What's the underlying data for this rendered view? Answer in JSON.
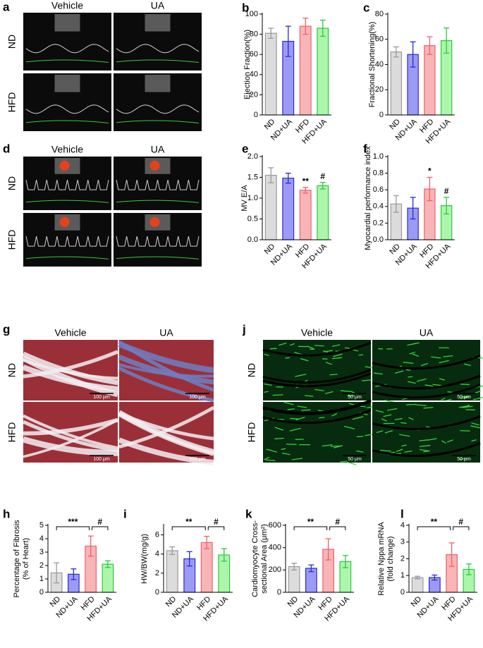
{
  "image_panels": [
    {
      "label": "a",
      "columns": [
        "Vehicle",
        "UA"
      ],
      "rows": [
        "ND",
        "HFD"
      ]
    },
    {
      "label": "d",
      "columns": [
        "Vehicle",
        "UA"
      ],
      "rows": [
        "ND",
        "HFD"
      ]
    },
    {
      "label": "g",
      "columns": [
        "Vehicle",
        "UA"
      ],
      "rows": [
        "ND",
        "HFD"
      ],
      "scale_bar": "100 μm"
    },
    {
      "label": "j",
      "columns": [
        "Vehicle",
        "UA"
      ],
      "rows": [
        "ND",
        "HFD"
      ],
      "scale_bar": "50 μm"
    }
  ],
  "palette": {
    "fill": [
      "#d6d6d6",
      "#8a8af5",
      "#f7a8a8",
      "#9df59d"
    ],
    "stroke": [
      "#9a9a9a",
      "#2b2bd6",
      "#f0606e",
      "#2ec83e"
    ]
  },
  "chart_data": [
    {
      "type": "bar",
      "panel_label": "b",
      "y_label": "Ejection Fraction(%)",
      "categories": [
        "ND",
        "ND+UA",
        "HFD",
        "HFD+UA"
      ],
      "values": [
        81,
        73,
        88,
        86
      ],
      "errors": [
        5,
        15,
        8,
        8
      ],
      "ylim": [
        0,
        100
      ],
      "yticks": [
        0,
        20,
        40,
        60,
        80,
        100
      ]
    },
    {
      "type": "bar",
      "panel_label": "c",
      "y_label": "Fractional Shortening(%)",
      "categories": [
        "ND",
        "ND+UA",
        "HFD",
        "HFD+UA"
      ],
      "values": [
        50,
        48,
        55,
        59
      ],
      "errors": [
        4,
        10,
        7,
        10
      ],
      "ylim": [
        0,
        80
      ],
      "yticks": [
        0,
        20,
        40,
        60,
        80
      ]
    },
    {
      "type": "bar",
      "panel_label": "e",
      "y_label": "MV E/A",
      "categories": [
        "ND",
        "ND+UA",
        "HFD",
        "HFD+UA"
      ],
      "values": [
        1.55,
        1.48,
        1.19,
        1.3
      ],
      "errors": [
        0.18,
        0.12,
        0.07,
        0.08
      ],
      "bar_labels": [
        null,
        null,
        "**",
        "#"
      ],
      "ylim": [
        0,
        2
      ],
      "yticks": [
        {
          "value": 0,
          "label": "0.0"
        },
        0.5,
        {
          "value": 1,
          "label": "1.0"
        },
        1.5,
        {
          "value": 2,
          "label": "2.0"
        }
      ]
    },
    {
      "type": "bar",
      "panel_label": "f",
      "y_label": "Myocardial performance index",
      "categories": [
        "ND",
        "ND+UA",
        "HFD",
        "HFD+UA"
      ],
      "values": [
        0.43,
        0.38,
        0.61,
        0.41
      ],
      "errors": [
        0.1,
        0.13,
        0.14,
        0.1
      ],
      "bar_labels": [
        null,
        null,
        "*",
        "#"
      ],
      "ylim": [
        0,
        1
      ],
      "yticks": [
        {
          "value": 0,
          "label": "0.0"
        },
        0.2,
        0.4,
        0.6,
        0.8,
        {
          "value": 1,
          "label": "1.0"
        }
      ]
    },
    {
      "type": "bar",
      "panel_label": "h",
      "y_label": [
        "Percentage of Fibrosis",
        "(% of Heart)"
      ],
      "categories": [
        "ND",
        "ND+UA",
        "HFD",
        "HFD+UA"
      ],
      "values": [
        1.45,
        1.35,
        3.45,
        2.1
      ],
      "errors": [
        0.75,
        0.4,
        0.75,
        0.25
      ],
      "brackets": [
        "***",
        "#"
      ],
      "ylim": [
        0,
        5
      ],
      "yticks": [
        0,
        1,
        2,
        3,
        4,
        5
      ]
    },
    {
      "type": "bar",
      "panel_label": "i",
      "y_label": "HW/BW(mg/g)",
      "categories": [
        "ND",
        "ND+UA",
        "HFD",
        "HFD+UA"
      ],
      "values": [
        4.35,
        3.5,
        5.2,
        3.9
      ],
      "errors": [
        0.4,
        0.75,
        0.65,
        0.65
      ],
      "brackets": [
        "**",
        "#"
      ],
      "ylim": [
        0,
        7
      ],
      "yticks": [
        0,
        2,
        4,
        6
      ]
    },
    {
      "type": "bar",
      "panel_label": "k",
      "y_label": [
        "Cardiomyocyte Cross-",
        "sectional Area (μm²)"
      ],
      "categories": [
        "ND",
        "ND+UA",
        "HFD",
        "HFD+UA"
      ],
      "values": [
        230,
        215,
        385,
        275
      ],
      "errors": [
        30,
        30,
        95,
        55
      ],
      "brackets": [
        "**",
        "#"
      ],
      "ylim": [
        0,
        600
      ],
      "yticks": [
        0,
        200,
        400,
        600
      ]
    },
    {
      "type": "bar",
      "panel_label": "l",
      "y_label": [
        "Relative Nppa mRNA",
        "(fold change)"
      ],
      "categories": [
        "ND",
        "ND+UA",
        "HFD",
        "HFD+UA"
      ],
      "values": [
        0.88,
        0.88,
        2.25,
        1.37
      ],
      "errors": [
        0.08,
        0.15,
        0.7,
        0.32
      ],
      "brackets": [
        "**",
        "#"
      ],
      "ylim": [
        0,
        4
      ],
      "yticks": [
        0,
        1,
        2,
        3,
        4
      ]
    }
  ]
}
